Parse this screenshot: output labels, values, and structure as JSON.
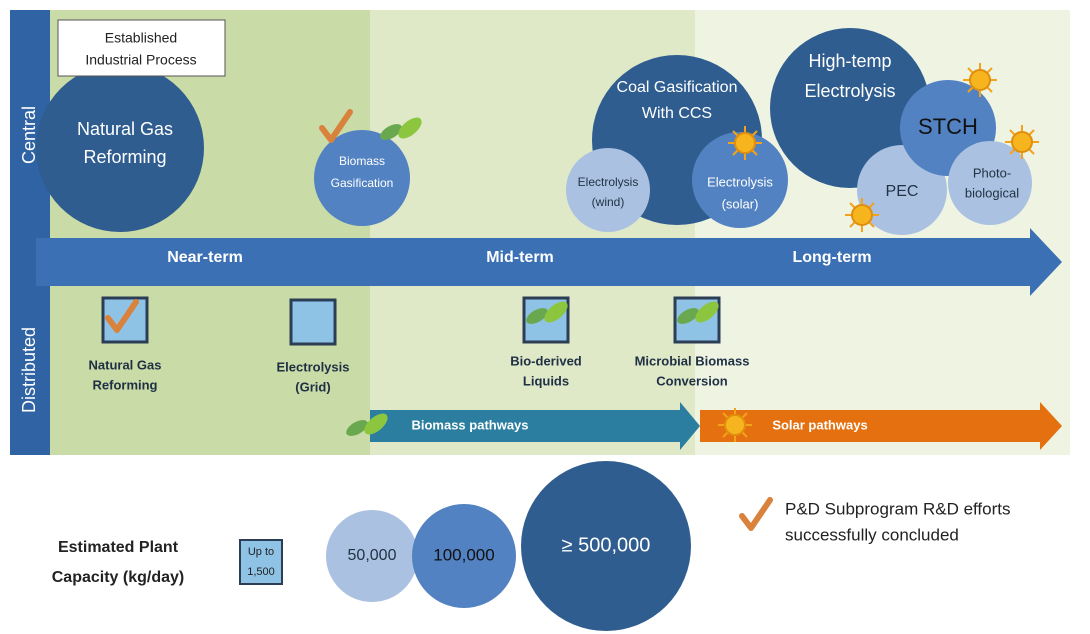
{
  "header": {
    "established": [
      "Established",
      "Industrial Process"
    ]
  },
  "axis_labels": {
    "central": "Central",
    "distributed": "Distributed"
  },
  "timeline": [
    "Near-term",
    "Mid-term",
    "Long-term"
  ],
  "central": [
    {
      "label": [
        "Natural Gas",
        "Reforming"
      ]
    },
    {
      "label": [
        "Biomass",
        "Gasification"
      ]
    },
    {
      "label": [
        "Coal Gasification",
        "With CCS"
      ]
    },
    {
      "label": [
        "Electrolysis",
        "(wind)"
      ]
    },
    {
      "label": [
        "Electrolysis",
        "(solar)"
      ]
    },
    {
      "label": [
        "High-temp",
        "Electrolysis"
      ]
    },
    {
      "label": [
        "PEC"
      ]
    },
    {
      "label": [
        "STCH"
      ]
    },
    {
      "label": [
        "Photo-",
        "biological"
      ]
    }
  ],
  "distributed": [
    {
      "label": [
        "Natural Gas",
        "Reforming"
      ]
    },
    {
      "label": [
        "Electrolysis",
        "(Grid)"
      ]
    },
    {
      "label": [
        "Bio-derived",
        "Liquids"
      ]
    },
    {
      "label": [
        "Microbial Biomass",
        "Conversion"
      ]
    }
  ],
  "pathways": [
    "Biomass pathways",
    "Solar pathways"
  ],
  "legend": {
    "capacity_title": [
      "Estimated Plant",
      "Capacity (kg/day)"
    ],
    "sizes": [
      [
        "Up to",
        "1,500"
      ],
      [
        "50,000"
      ],
      [
        "100,000"
      ],
      [
        "≥ 500,000"
      ]
    ],
    "check_note": [
      "P&D Subprogram R&D efforts",
      "successfully concluded"
    ]
  }
}
